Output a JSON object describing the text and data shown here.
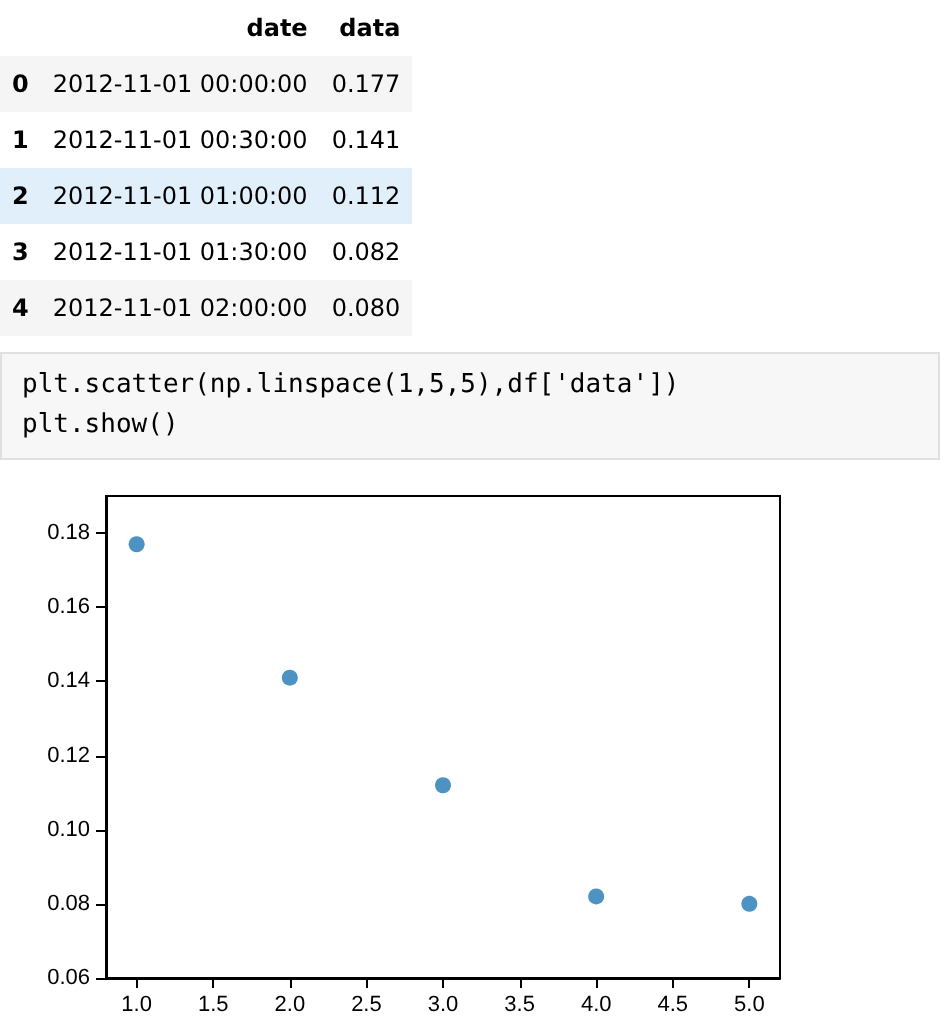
{
  "chart_data": {
    "type": "scatter",
    "x": [
      1,
      2,
      3,
      4,
      5
    ],
    "values": [
      0.177,
      0.141,
      0.112,
      0.082,
      0.08
    ],
    "color": "#1f77b4",
    "marker": "circle",
    "grid": false,
    "xlim": [
      0.8,
      5.2
    ],
    "xticks": [
      {
        "value": 1,
        "label": "1.0"
      },
      {
        "value": 1.5,
        "label": "1.5"
      },
      {
        "value": 2,
        "label": "2.0"
      },
      {
        "value": 2.5,
        "label": "2.5"
      },
      {
        "value": 3,
        "label": "3.0"
      },
      {
        "value": 3.5,
        "label": "3.5"
      },
      {
        "value": 4,
        "label": "4.0"
      },
      {
        "value": 4.5,
        "label": "4.5"
      },
      {
        "value": 5,
        "label": "5.0"
      }
    ],
    "ylim": [
      0.06,
      0.19
    ],
    "yticks": [
      {
        "value": 0.06,
        "label": "0.06"
      },
      {
        "value": 0.08,
        "label": "0.08"
      },
      {
        "value": 0.1,
        "label": "0.10"
      },
      {
        "value": 0.12,
        "label": "0.12"
      },
      {
        "value": 0.14,
        "label": "0.14"
      },
      {
        "value": 0.16,
        "label": "0.16"
      },
      {
        "value": 0.18,
        "label": "0.18"
      }
    ],
    "annotations": [
      "date",
      "data",
      "0",
      "2012-11-01 00:00:00",
      "0.177",
      "1",
      "2012-11-01 00:30:00",
      "0.141",
      "2",
      "2012-11-01 01:00:00",
      "0.112",
      "3",
      "2012-11-01 01:30:00",
      "0.082",
      "4",
      "2012-11-01 02:00:00",
      "0.080",
      "plt.scatter(np.linspace(1,5,5),df['data'])",
      "plt.show()"
    ]
  }
}
